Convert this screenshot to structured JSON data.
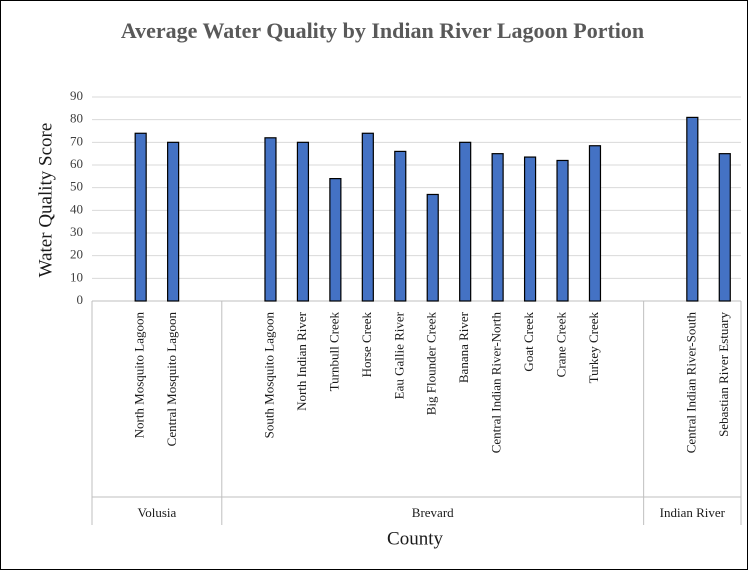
{
  "chart_data": {
    "type": "bar",
    "title": "Average Water Quality by Indian River Lagoon Portion",
    "x_label": "County",
    "y_label": "Water Quality Score",
    "categories": [
      null,
      "North Mosquito Lagoon",
      "Central Mosquito Lagoon",
      null,
      null,
      "South Mosquito Lagoon",
      "North Indian River",
      "Turnbull Creek",
      "Horse Creek",
      "Eau Gallie River",
      "Big Flounder Creek",
      "Banana River",
      "Central Indian River-North",
      "Goat Creek",
      "Crane Creek",
      "Turkey Creek",
      null,
      null,
      "Central Indian River-South",
      "Sebastian River Estuary"
    ],
    "values": [
      null,
      74,
      70,
      null,
      null,
      72,
      70,
      54,
      74,
      66,
      47,
      70,
      65,
      63.5,
      62,
      68.5,
      null,
      null,
      81,
      65
    ],
    "groups": [
      {
        "name": "Volusia",
        "count": 4
      },
      {
        "name": "Brevard",
        "count": 13
      },
      {
        "name": "Indian River",
        "count": 3
      }
    ],
    "color": "#4472c4",
    "ylim": [
      0,
      90
    ],
    "yticks": [
      0,
      10,
      20,
      30,
      40,
      50,
      60,
      70,
      80,
      90
    ],
    "grid": true
  }
}
